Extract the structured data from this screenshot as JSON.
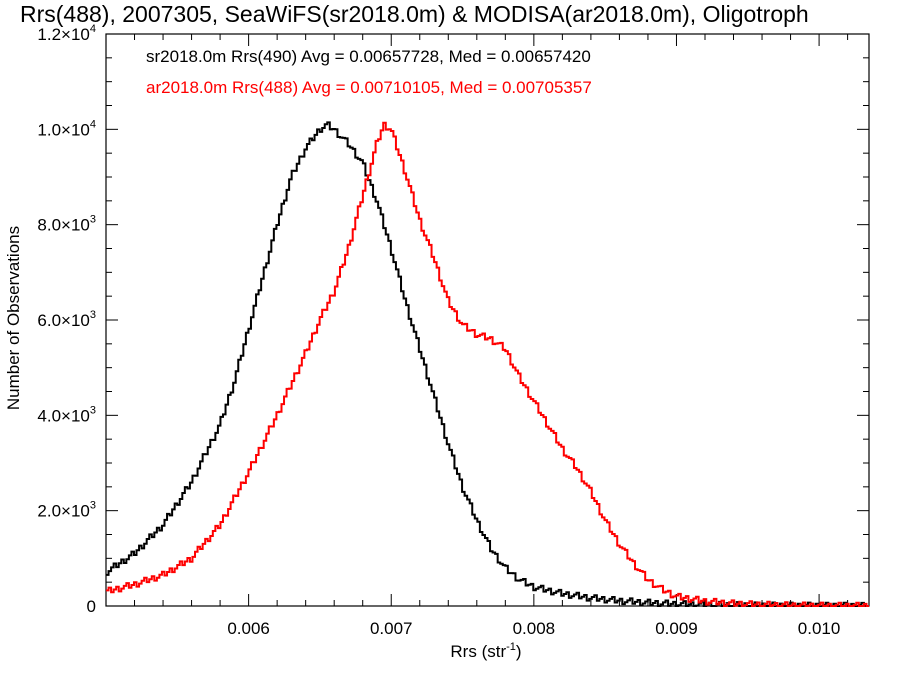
{
  "chart_data": {
    "type": "line",
    "title": "Rrs(488), 2007305, SeaWiFS(sr2018.0m) & MODISA(ar2018.0m), Oligotroph",
    "xlabel": "Rrs (str",
    "xlabel_sup": "-1",
    "xlabel_tail": ")",
    "ylabel": "Number of Observations",
    "xlim": [
      0.005,
      0.01035
    ],
    "ylim": [
      0,
      12000
    ],
    "x_ticks": [
      0.006,
      0.007,
      0.008,
      0.009,
      0.01
    ],
    "x_tick_labels": [
      "0.006",
      "0.007",
      "0.008",
      "0.009",
      "0.010"
    ],
    "y_ticks": [
      0,
      2000,
      4000,
      6000,
      8000,
      10000,
      12000
    ],
    "y_tick_labels": [
      {
        "base": "0",
        "exp": ""
      },
      {
        "base": "2.0×10",
        "exp": "3"
      },
      {
        "base": "4.0×10",
        "exp": "3"
      },
      {
        "base": "6.0×10",
        "exp": "3"
      },
      {
        "base": "8.0×10",
        "exp": "3"
      },
      {
        "base": "1.0×10",
        "exp": "4"
      },
      {
        "base": "1.2×10",
        "exp": "4"
      }
    ],
    "grid": false,
    "legend_position": "top-left",
    "series": [
      {
        "name": "sr2018.0m Rrs(490) Avg = 0.00657728, Med = 0.00657420",
        "color": "#000000",
        "x": [
          0.005,
          0.0052,
          0.0054,
          0.0056,
          0.0058,
          0.0059,
          0.006,
          0.0061,
          0.0062,
          0.0063,
          0.0064,
          0.0065,
          0.00655,
          0.0066,
          0.0067,
          0.0068,
          0.0069,
          0.007,
          0.0071,
          0.0072,
          0.0073,
          0.0074,
          0.0075,
          0.0076,
          0.0077,
          0.0078,
          0.0079,
          0.008,
          0.0082,
          0.0084,
          0.0086,
          0.0088,
          0.009,
          0.0092,
          0.0094,
          0.0096,
          0.0098,
          0.01,
          0.01035
        ],
        "y": [
          700,
          1100,
          1700,
          2600,
          3800,
          4700,
          5800,
          6900,
          8000,
          9000,
          9600,
          10000,
          10100,
          10000,
          9700,
          9300,
          8500,
          7500,
          6400,
          5400,
          4400,
          3400,
          2500,
          1800,
          1200,
          800,
          550,
          400,
          260,
          170,
          110,
          70,
          40,
          25,
          15,
          10,
          5,
          3,
          0
        ]
      },
      {
        "name": "ar2018.0m Rrs(488) Avg = 0.00710105, Med = 0.00705357",
        "color": "#ff0000",
        "x": [
          0.005,
          0.0052,
          0.0054,
          0.0056,
          0.0058,
          0.006,
          0.0062,
          0.0064,
          0.0065,
          0.0066,
          0.0067,
          0.0068,
          0.0069,
          0.00695,
          0.007,
          0.0071,
          0.0072,
          0.0073,
          0.0074,
          0.0075,
          0.0076,
          0.0077,
          0.0078,
          0.0079,
          0.008,
          0.0081,
          0.0082,
          0.0083,
          0.0084,
          0.0085,
          0.0086,
          0.0087,
          0.0088,
          0.0089,
          0.009,
          0.0092,
          0.0094,
          0.0096,
          0.0098,
          0.01,
          0.01035
        ],
        "y": [
          300,
          450,
          650,
          1000,
          1700,
          2800,
          4000,
          5300,
          6000,
          6600,
          7500,
          8600,
          9700,
          10100,
          10000,
          9100,
          8100,
          7300,
          6400,
          5900,
          5700,
          5600,
          5400,
          4800,
          4300,
          3800,
          3300,
          2900,
          2400,
          1800,
          1300,
          900,
          550,
          350,
          200,
          100,
          50,
          25,
          12,
          5,
          0
        ]
      }
    ]
  }
}
